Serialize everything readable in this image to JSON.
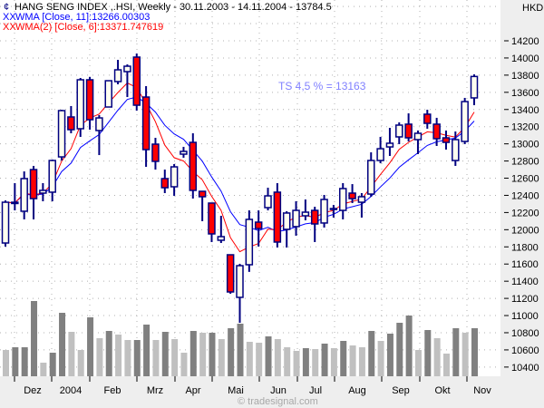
{
  "chart_data": {
    "type": "candlestick",
    "title": "HANG SENG INDEX ,.HSI, Weekly - 30.11.2003 - 14.11.2004 - 13784.5",
    "currency": "HKD",
    "annotation": "TS 4,5 % = 13163",
    "watermark": "© tradesignal.com",
    "legend": [
      {
        "label": "WMA [Close, 11]:13266.00303",
        "color": "#0000ff",
        "period": 11
      },
      {
        "label": "WMA(2) [Close, 6]:13371.747619",
        "color": "#ff0000",
        "period": 6
      }
    ],
    "ylim": [
      10300,
      14650
    ],
    "yticks": [
      10400,
      10600,
      10800,
      11000,
      11200,
      11400,
      11600,
      11800,
      12000,
      12200,
      12400,
      12600,
      12800,
      13000,
      13200,
      13400,
      13600,
      13800,
      14000,
      14200
    ],
    "xlabels": [
      "Dez",
      "2004",
      "Feb",
      "Mrz",
      "Apr",
      "Mai",
      "Jun",
      "Jul",
      "Aug",
      "Sep",
      "Okt",
      "Nov"
    ],
    "ohlc": [
      [
        11845,
        12341,
        11803,
        12320
      ],
      [
        12320,
        12542,
        12225,
        12305
      ],
      [
        12215,
        12679,
        12120,
        12595
      ],
      [
        12700,
        12743,
        12120,
        12362
      ],
      [
        12426,
        12542,
        12331,
        12458
      ],
      [
        12437,
        12817,
        12331,
        12806
      ],
      [
        12848,
        13397,
        12806,
        13387
      ],
      [
        13313,
        13440,
        13123,
        13165
      ],
      [
        13176,
        13767,
        13081,
        13746
      ],
      [
        13746,
        13778,
        13165,
        13281
      ],
      [
        13155,
        13334,
        12869,
        13302
      ],
      [
        13429,
        13735,
        13429,
        13735
      ],
      [
        13725,
        13978,
        13693,
        13862
      ],
      [
        13841,
        13925,
        13545,
        13904
      ],
      [
        14010,
        14052,
        13387,
        13450
      ],
      [
        13545,
        13672,
        12732,
        12933
      ],
      [
        12996,
        13070,
        12700,
        12796
      ],
      [
        12595,
        12700,
        12426,
        12489
      ],
      [
        12500,
        12764,
        12394,
        12732
      ],
      [
        12880,
        12965,
        12838,
        12912
      ],
      [
        13017,
        13123,
        12362,
        12458
      ],
      [
        12447,
        12447,
        12099,
        12384
      ],
      [
        12310,
        12310,
        11856,
        11951
      ],
      [
        11877,
        12162,
        11845,
        11919
      ],
      [
        11708,
        11708,
        11254,
        11275
      ],
      [
        11212,
        11602,
        10916,
        11581
      ],
      [
        11592,
        12225,
        11508,
        12120
      ],
      [
        12088,
        12225,
        11803,
        12014
      ],
      [
        12257,
        12489,
        12225,
        12394
      ],
      [
        12437,
        12542,
        11792,
        11856
      ],
      [
        12004,
        12215,
        11792,
        12194
      ],
      [
        12036,
        12331,
        11930,
        12225
      ],
      [
        12162,
        12352,
        12109,
        12204
      ],
      [
        12225,
        12267,
        11856,
        12067
      ],
      [
        12078,
        12405,
        12025,
        12352
      ],
      [
        12246,
        12288,
        12141,
        12236
      ],
      [
        12225,
        12542,
        12120,
        12479
      ],
      [
        12426,
        12531,
        12310,
        12362
      ],
      [
        12320,
        12426,
        12141,
        12384
      ],
      [
        12415,
        12901,
        12384,
        12806
      ],
      [
        12806,
        13081,
        12774,
        12943
      ],
      [
        12964,
        13186,
        12859,
        13007
      ],
      [
        13081,
        13250,
        12996,
        13218
      ],
      [
        13229,
        13355,
        13028,
        13070
      ],
      [
        13049,
        13155,
        12880,
        13123
      ],
      [
        13345,
        13397,
        13176,
        13239
      ],
      [
        13229,
        13303,
        12975,
        13060
      ],
      [
        13070,
        13155,
        12933,
        13017
      ],
      [
        12806,
        13144,
        12743,
        13049
      ],
      [
        13028,
        13535,
        12996,
        13492
      ],
      [
        13535,
        13809,
        13450,
        13784.5
      ]
    ],
    "volume_relative": [
      29,
      32,
      32,
      83,
      15,
      26,
      70,
      49,
      29,
      65,
      42,
      50,
      46,
      40,
      40,
      57,
      40,
      49,
      41,
      26,
      50,
      48,
      48,
      41,
      53,
      58,
      38,
      37,
      44,
      41,
      32,
      28,
      31,
      30,
      36,
      31,
      39,
      34,
      32,
      50,
      39,
      47,
      59,
      67,
      29,
      51,
      42,
      25,
      53,
      48,
      53
    ],
    "colors": {
      "up_fill": "#fffff0",
      "down_fill": "#ff0000",
      "outline": "#000080",
      "vol_dark": "#808080",
      "vol_light": "#c0c0c0",
      "axis_bg": "#eeeeee",
      "annotation": "#8080ff"
    }
  }
}
